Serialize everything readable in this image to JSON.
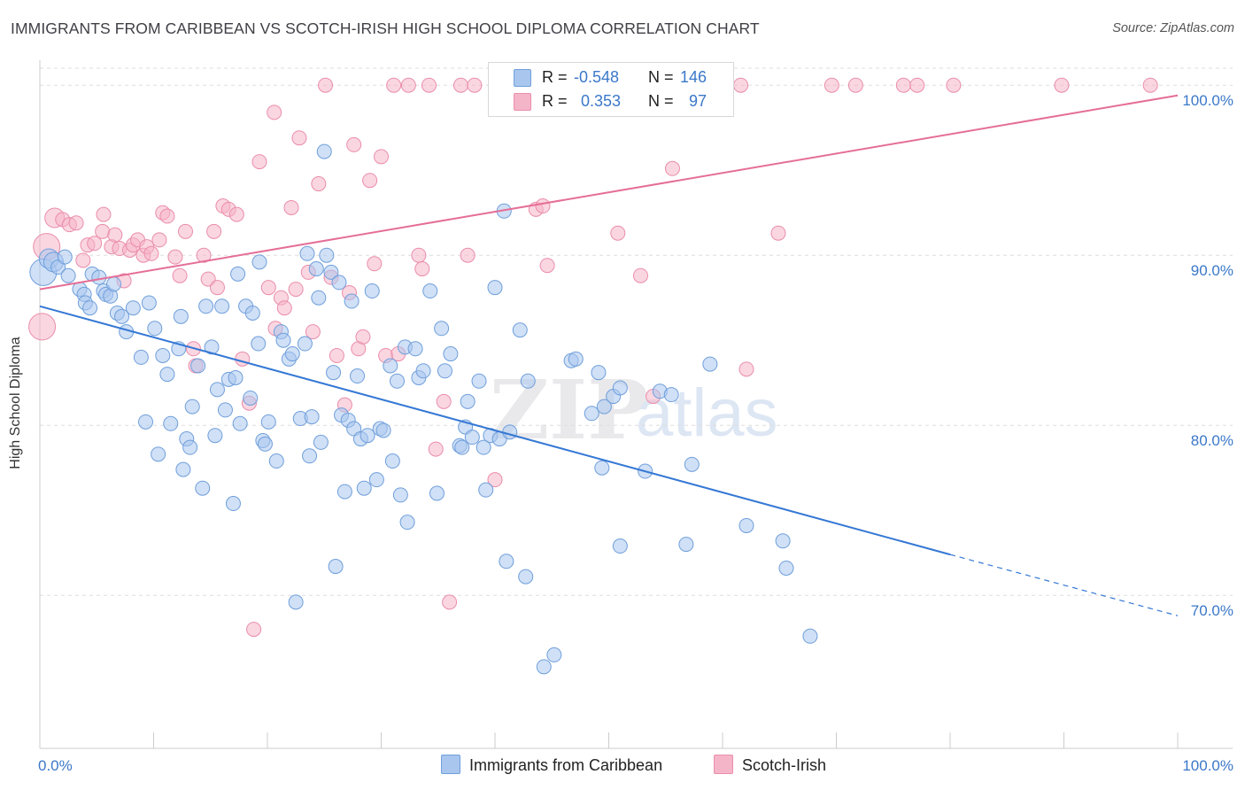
{
  "title": "IMMIGRANTS FROM CARIBBEAN VS SCOTCH-IRISH HIGH SCHOOL DIPLOMA CORRELATION CHART",
  "source": "Source: ZipAtlas.com",
  "colors": {
    "blue_fill": "#a9c6ee",
    "blue_stroke": "#6f9fdb",
    "blue_line": "#3578d4",
    "pink_fill": "#f5b5c8",
    "pink_stroke": "#ea8dab",
    "pink_line": "#e56e97",
    "axis_label": "#3b78c9",
    "grid": "#dddddd"
  },
  "legend": {
    "rows": [
      {
        "r_label": "R =",
        "r_value": "-0.548",
        "n_label": "N =",
        "n_value": "146"
      },
      {
        "r_label": "R =",
        "r_value": "0.353",
        "n_label": "N =",
        "n_value": "97"
      }
    ]
  },
  "bottom_legend": {
    "series_a": "Immigrants from Caribbean",
    "series_b": "Scotch-Irish"
  },
  "watermark": {
    "zip": "ZIP",
    "atlas": "atlas"
  },
  "chart_data": {
    "type": "scatter",
    "title": "IMMIGRANTS FROM CARIBBEAN VS SCOTCH-IRISH HIGH SCHOOL DIPLOMA CORRELATION CHART",
    "xlabel": "",
    "ylabel": "High School Diploma",
    "x_tick_labels": [
      "0.0%",
      "100.0%"
    ],
    "y_tick_labels": [
      "100.0%",
      "90.0%",
      "80.0%",
      "70.0%"
    ],
    "xlim": [
      0,
      100
    ],
    "ylim": [
      61,
      101
    ],
    "grid": "horizontal dashed",
    "legend_position": "top-center",
    "series": [
      {
        "name": "Immigrants from Caribbean",
        "r": -0.548,
        "n": 146,
        "trend": {
          "x0": 0,
          "y0": 87.0,
          "x1": 80,
          "y1": 72.4,
          "dashed_to_x": 100,
          "dashed_to_y": 68.8
        },
        "points": [
          [
            0.3,
            89.0,
            3
          ],
          [
            0.8,
            89.8,
            2
          ],
          [
            1.2,
            89.6,
            2
          ],
          [
            1.6,
            89.3,
            1
          ],
          [
            2.2,
            89.9,
            1
          ],
          [
            2.5,
            88.8,
            1
          ],
          [
            3.5,
            88.0,
            1
          ],
          [
            3.9,
            87.7,
            1
          ],
          [
            4.0,
            87.2,
            1
          ],
          [
            4.4,
            86.9,
            1
          ],
          [
            4.6,
            88.9,
            1
          ],
          [
            5.2,
            88.7,
            1
          ],
          [
            5.6,
            87.9,
            1
          ],
          [
            5.8,
            87.7,
            1
          ],
          [
            6.2,
            87.6,
            1
          ],
          [
            6.5,
            88.3,
            1
          ],
          [
            6.8,
            86.6,
            1
          ],
          [
            7.2,
            86.4,
            1
          ],
          [
            7.6,
            85.5,
            1
          ],
          [
            8.2,
            86.9,
            1
          ],
          [
            8.9,
            84.0,
            1
          ],
          [
            9.3,
            80.2,
            1
          ],
          [
            9.6,
            87.2,
            1
          ],
          [
            10.1,
            85.7,
            1
          ],
          [
            10.4,
            78.3,
            1
          ],
          [
            10.8,
            84.1,
            1
          ],
          [
            11.2,
            83.0,
            1
          ],
          [
            11.5,
            80.1,
            1
          ],
          [
            12.2,
            84.5,
            1
          ],
          [
            12.4,
            86.4,
            1
          ],
          [
            12.6,
            77.4,
            1
          ],
          [
            12.9,
            79.2,
            1
          ],
          [
            13.2,
            78.7,
            1
          ],
          [
            13.4,
            81.1,
            1
          ],
          [
            13.9,
            83.5,
            1
          ],
          [
            14.3,
            76.3,
            1
          ],
          [
            14.6,
            87.0,
            1
          ],
          [
            15.1,
            84.6,
            1
          ],
          [
            15.4,
            79.4,
            1
          ],
          [
            15.6,
            82.1,
            1
          ],
          [
            16.0,
            87.0,
            1
          ],
          [
            16.3,
            80.9,
            1
          ],
          [
            16.6,
            82.7,
            1
          ],
          [
            17.0,
            75.4,
            1
          ],
          [
            17.2,
            82.8,
            1
          ],
          [
            17.4,
            88.9,
            1
          ],
          [
            17.6,
            80.1,
            1
          ],
          [
            18.1,
            87.0,
            1
          ],
          [
            18.5,
            81.6,
            1
          ],
          [
            18.7,
            86.6,
            1
          ],
          [
            19.2,
            84.8,
            1
          ],
          [
            19.3,
            89.6,
            1
          ],
          [
            19.6,
            79.1,
            1
          ],
          [
            19.8,
            78.9,
            1
          ],
          [
            20.1,
            80.2,
            1
          ],
          [
            20.8,
            77.9,
            1
          ],
          [
            21.2,
            85.5,
            1
          ],
          [
            21.4,
            85.0,
            1
          ],
          [
            21.9,
            83.9,
            1
          ],
          [
            22.2,
            84.2,
            1
          ],
          [
            22.5,
            69.6,
            1
          ],
          [
            22.9,
            80.4,
            1
          ],
          [
            23.3,
            84.8,
            1
          ],
          [
            23.5,
            90.1,
            1
          ],
          [
            23.7,
            78.2,
            1
          ],
          [
            23.9,
            80.5,
            1
          ],
          [
            24.3,
            89.2,
            1
          ],
          [
            24.5,
            87.5,
            1
          ],
          [
            24.7,
            79.0,
            1
          ],
          [
            25.0,
            96.1,
            1
          ],
          [
            25.2,
            90.0,
            1
          ],
          [
            25.6,
            89.0,
            1
          ],
          [
            25.8,
            83.1,
            1
          ],
          [
            26.0,
            71.7,
            1
          ],
          [
            26.3,
            88.4,
            1
          ],
          [
            26.5,
            80.6,
            1
          ],
          [
            26.8,
            76.1,
            1
          ],
          [
            27.1,
            80.3,
            1
          ],
          [
            27.4,
            87.3,
            1
          ],
          [
            27.6,
            79.8,
            1
          ],
          [
            27.9,
            82.9,
            1
          ],
          [
            28.2,
            79.2,
            1
          ],
          [
            28.5,
            76.3,
            1
          ],
          [
            28.8,
            79.4,
            1
          ],
          [
            29.2,
            87.9,
            1
          ],
          [
            29.6,
            76.8,
            1
          ],
          [
            29.9,
            79.8,
            1
          ],
          [
            30.2,
            79.7,
            1
          ],
          [
            30.8,
            83.5,
            1
          ],
          [
            31.0,
            77.9,
            1
          ],
          [
            31.4,
            82.6,
            1
          ],
          [
            31.7,
            75.9,
            1
          ],
          [
            32.1,
            84.6,
            1
          ],
          [
            32.3,
            74.3,
            1
          ],
          [
            33.0,
            84.5,
            1
          ],
          [
            33.3,
            82.8,
            1
          ],
          [
            33.7,
            83.2,
            1
          ],
          [
            34.3,
            87.9,
            1
          ],
          [
            34.9,
            76.0,
            1
          ],
          [
            35.3,
            85.7,
            1
          ],
          [
            35.6,
            83.2,
            1
          ],
          [
            36.1,
            84.2,
            1
          ],
          [
            36.9,
            78.8,
            1
          ],
          [
            37.1,
            78.7,
            1
          ],
          [
            37.4,
            79.9,
            1
          ],
          [
            37.6,
            81.4,
            1
          ],
          [
            38.0,
            79.3,
            1
          ],
          [
            38.6,
            82.6,
            1
          ],
          [
            39.0,
            78.7,
            1
          ],
          [
            39.2,
            76.2,
            1
          ],
          [
            39.6,
            79.4,
            1
          ],
          [
            40.0,
            88.1,
            1
          ],
          [
            40.4,
            79.2,
            1
          ],
          [
            40.8,
            92.6,
            1
          ],
          [
            41.0,
            72.0,
            1
          ],
          [
            41.3,
            79.6,
            1
          ],
          [
            42.2,
            85.6,
            1
          ],
          [
            42.7,
            71.1,
            1
          ],
          [
            42.9,
            82.6,
            1
          ],
          [
            44.3,
            65.8,
            1
          ],
          [
            45.2,
            66.5,
            1
          ],
          [
            46.7,
            83.8,
            1
          ],
          [
            47.1,
            83.9,
            1
          ],
          [
            49.1,
            83.1,
            1
          ],
          [
            49.4,
            77.5,
            1
          ],
          [
            49.6,
            81.1,
            1
          ],
          [
            50.4,
            81.7,
            1
          ],
          [
            51.0,
            82.2,
            1
          ],
          [
            53.2,
            77.3,
            1
          ],
          [
            54.5,
            82.0,
            1
          ],
          [
            55.5,
            81.8,
            1
          ],
          [
            56.8,
            73.0,
            1
          ],
          [
            57.3,
            77.7,
            1
          ],
          [
            58.9,
            83.6,
            1
          ],
          [
            62.1,
            74.1,
            1
          ],
          [
            65.3,
            73.2,
            1
          ],
          [
            65.6,
            71.6,
            1
          ],
          [
            67.7,
            67.6,
            1
          ],
          [
            51.0,
            72.9,
            1
          ],
          [
            48.5,
            80.7,
            1
          ]
        ]
      },
      {
        "name": "Scotch-Irish",
        "r": 0.353,
        "n": 97,
        "trend": {
          "x0": 0,
          "y0": 88.0,
          "x1": 100,
          "y1": 99.4
        },
        "points": [
          [
            0.2,
            85.8,
            3
          ],
          [
            0.6,
            90.5,
            3
          ],
          [
            1.3,
            92.2,
            2
          ],
          [
            2.0,
            92.1,
            1
          ],
          [
            2.6,
            91.8,
            1
          ],
          [
            3.2,
            91.9,
            1
          ],
          [
            3.8,
            89.7,
            1
          ],
          [
            4.2,
            90.6,
            1
          ],
          [
            4.8,
            90.7,
            1
          ],
          [
            5.5,
            91.4,
            1
          ],
          [
            5.6,
            92.4,
            1
          ],
          [
            6.3,
            90.5,
            1
          ],
          [
            6.6,
            91.2,
            1
          ],
          [
            7.0,
            90.4,
            1
          ],
          [
            7.4,
            88.5,
            1
          ],
          [
            7.9,
            90.3,
            1
          ],
          [
            8.2,
            90.6,
            1
          ],
          [
            8.6,
            90.9,
            1
          ],
          [
            9.1,
            90.0,
            1
          ],
          [
            9.4,
            90.5,
            1
          ],
          [
            9.8,
            90.1,
            1
          ],
          [
            10.5,
            90.9,
            1
          ],
          [
            10.8,
            92.5,
            1
          ],
          [
            11.2,
            92.3,
            1
          ],
          [
            11.9,
            89.9,
            1
          ],
          [
            12.3,
            88.8,
            1
          ],
          [
            12.8,
            91.4,
            1
          ],
          [
            13.5,
            84.5,
            1
          ],
          [
            13.7,
            83.5,
            1
          ],
          [
            14.4,
            90.0,
            1
          ],
          [
            14.8,
            88.6,
            1
          ],
          [
            15.3,
            91.4,
            1
          ],
          [
            15.6,
            88.1,
            1
          ],
          [
            16.1,
            92.9,
            1
          ],
          [
            16.6,
            92.7,
            1
          ],
          [
            17.3,
            92.4,
            1
          ],
          [
            17.8,
            83.9,
            1
          ],
          [
            18.4,
            81.3,
            1
          ],
          [
            18.8,
            68.0,
            1
          ],
          [
            19.3,
            95.5,
            1
          ],
          [
            20.1,
            88.1,
            1
          ],
          [
            20.7,
            85.7,
            1
          ],
          [
            21.2,
            87.5,
            1
          ],
          [
            21.5,
            86.9,
            1
          ],
          [
            22.1,
            92.8,
            1
          ],
          [
            22.5,
            88.0,
            1
          ],
          [
            22.8,
            96.9,
            1
          ],
          [
            23.6,
            89.0,
            1
          ],
          [
            24.0,
            85.5,
            1
          ],
          [
            24.5,
            94.2,
            1
          ],
          [
            25.1,
            100.0,
            1
          ],
          [
            25.6,
            88.7,
            1
          ],
          [
            26.1,
            84.1,
            1
          ],
          [
            26.8,
            81.2,
            1
          ],
          [
            27.2,
            87.8,
            1
          ],
          [
            27.6,
            96.5,
            1
          ],
          [
            28.0,
            84.5,
            1
          ],
          [
            28.4,
            85.2,
            1
          ],
          [
            29.0,
            94.4,
            1
          ],
          [
            29.4,
            89.5,
            1
          ],
          [
            30.0,
            95.8,
            1
          ],
          [
            30.4,
            84.1,
            1
          ],
          [
            31.1,
            100.0,
            1
          ],
          [
            31.5,
            84.2,
            1
          ],
          [
            32.4,
            100.0,
            1
          ],
          [
            33.3,
            90.0,
            1
          ],
          [
            33.6,
            89.2,
            1
          ],
          [
            34.2,
            100.0,
            1
          ],
          [
            34.8,
            78.6,
            1
          ],
          [
            35.5,
            81.4,
            1
          ],
          [
            36.0,
            69.6,
            1
          ],
          [
            37.0,
            100.0,
            1
          ],
          [
            37.6,
            90.0,
            1
          ],
          [
            38.2,
            100.0,
            1
          ],
          [
            40.0,
            76.8,
            1
          ],
          [
            42.2,
            100.0,
            1
          ],
          [
            43.6,
            92.7,
            1
          ],
          [
            44.2,
            92.9,
            1
          ],
          [
            44.6,
            89.4,
            1
          ],
          [
            46.1,
            100.0,
            1
          ],
          [
            48.3,
            100.0,
            1
          ],
          [
            50.8,
            91.3,
            1
          ],
          [
            52.8,
            88.8,
            1
          ],
          [
            53.9,
            81.7,
            1
          ],
          [
            55.6,
            95.1,
            1
          ],
          [
            57.0,
            100.0,
            1
          ],
          [
            61.6,
            100.0,
            1
          ],
          [
            62.1,
            83.3,
            1
          ],
          [
            64.9,
            91.3,
            1
          ],
          [
            69.6,
            100.0,
            1
          ],
          [
            71.7,
            100.0,
            1
          ],
          [
            75.9,
            100.0,
            1
          ],
          [
            77.1,
            100.0,
            1
          ],
          [
            80.3,
            100.0,
            1
          ],
          [
            89.8,
            100.0,
            1
          ],
          [
            97.6,
            100.0,
            1
          ],
          [
            20.6,
            98.4,
            1
          ]
        ]
      }
    ]
  }
}
